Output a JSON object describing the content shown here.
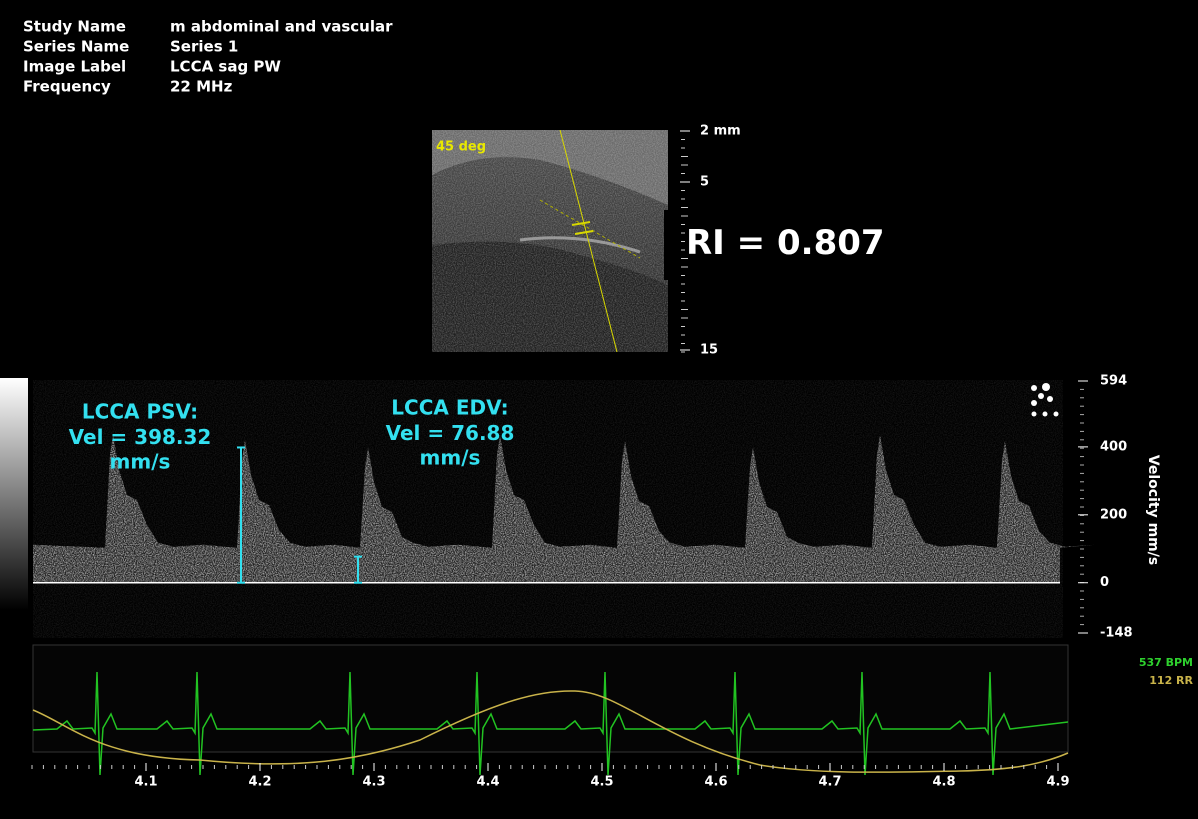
{
  "header": {
    "fields": [
      {
        "label": "Study Name",
        "value": "m abdominal and vascular"
      },
      {
        "label": "Series Name",
        "value": "Series 1"
      },
      {
        "label": "Image Label",
        "value": "LCCA sag PW"
      },
      {
        "label": "Frequency",
        "value": "22 MHz"
      }
    ]
  },
  "bmode": {
    "angle_label": "45 deg",
    "depth_ticks": [
      "2 mm",
      "5",
      "15"
    ]
  },
  "result": {
    "label": "RI =",
    "value": 0.807
  },
  "measurements": [
    {
      "title": "LCCA PSV:",
      "label": "Vel =",
      "value": 398.32,
      "unit": "mm/s"
    },
    {
      "title": "LCCA EDV:",
      "label": "Vel =",
      "value": 76.88,
      "unit": "mm/s"
    }
  ],
  "velocity_axis": {
    "title": "Velocity mm/s",
    "ticks": [
      594,
      400,
      200,
      0,
      -148
    ]
  },
  "time_axis": {
    "ticks": [
      4.1,
      4.2,
      4.3,
      4.4,
      4.5,
      4.6,
      4.7,
      4.8,
      4.9
    ]
  },
  "physio": {
    "bpm": "537 BPM",
    "rr": "112 RR"
  }
}
